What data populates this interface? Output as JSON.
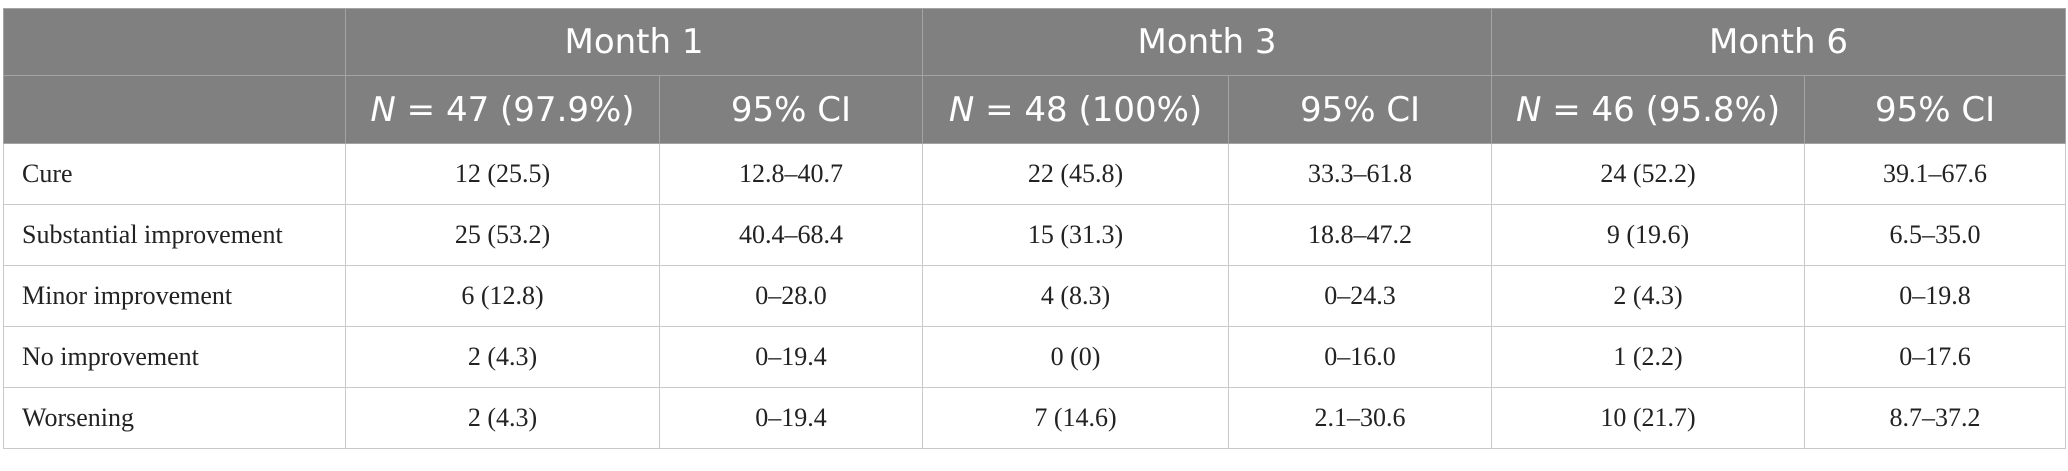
{
  "header": {
    "groups": [
      "Month 1",
      "Month 3",
      "Month 6"
    ],
    "sub": [
      {
        "n_prefix": "N",
        "n_rest": " = 47 (97.9%)",
        "ci": "95% CI"
      },
      {
        "n_prefix": "N",
        "n_rest": " = 48 (100%)",
        "ci": "95% CI"
      },
      {
        "n_prefix": "N",
        "n_rest": " = 46 (95.8%)",
        "ci": "95% CI"
      }
    ]
  },
  "rows": [
    {
      "label": "Cure",
      "cells": [
        "12 (25.5)",
        "12.8–40.7",
        "22 (45.8)",
        "33.3–61.8",
        "24 (52.2)",
        "39.1–67.6"
      ]
    },
    {
      "label": "Substantial improvement",
      "cells": [
        "25 (53.2)",
        "40.4–68.4",
        "15 (31.3)",
        "18.8–47.2",
        "9 (19.6)",
        "6.5–35.0"
      ]
    },
    {
      "label": "Minor improvement",
      "cells": [
        "6 (12.8)",
        "0–28.0",
        "4 (8.3)",
        "0–24.3",
        "2 (4.3)",
        "0–19.8"
      ]
    },
    {
      "label": "No improvement",
      "cells": [
        "2 (4.3)",
        "0–19.4",
        "0 (0)",
        "0–16.0",
        "1 (2.2)",
        "0–17.6"
      ]
    },
    {
      "label": "Worsening",
      "cells": [
        "2 (4.3)",
        "0–19.4",
        "7 (14.6)",
        "2.1–30.6",
        "10 (21.7)",
        "8.7–37.2"
      ]
    }
  ]
}
